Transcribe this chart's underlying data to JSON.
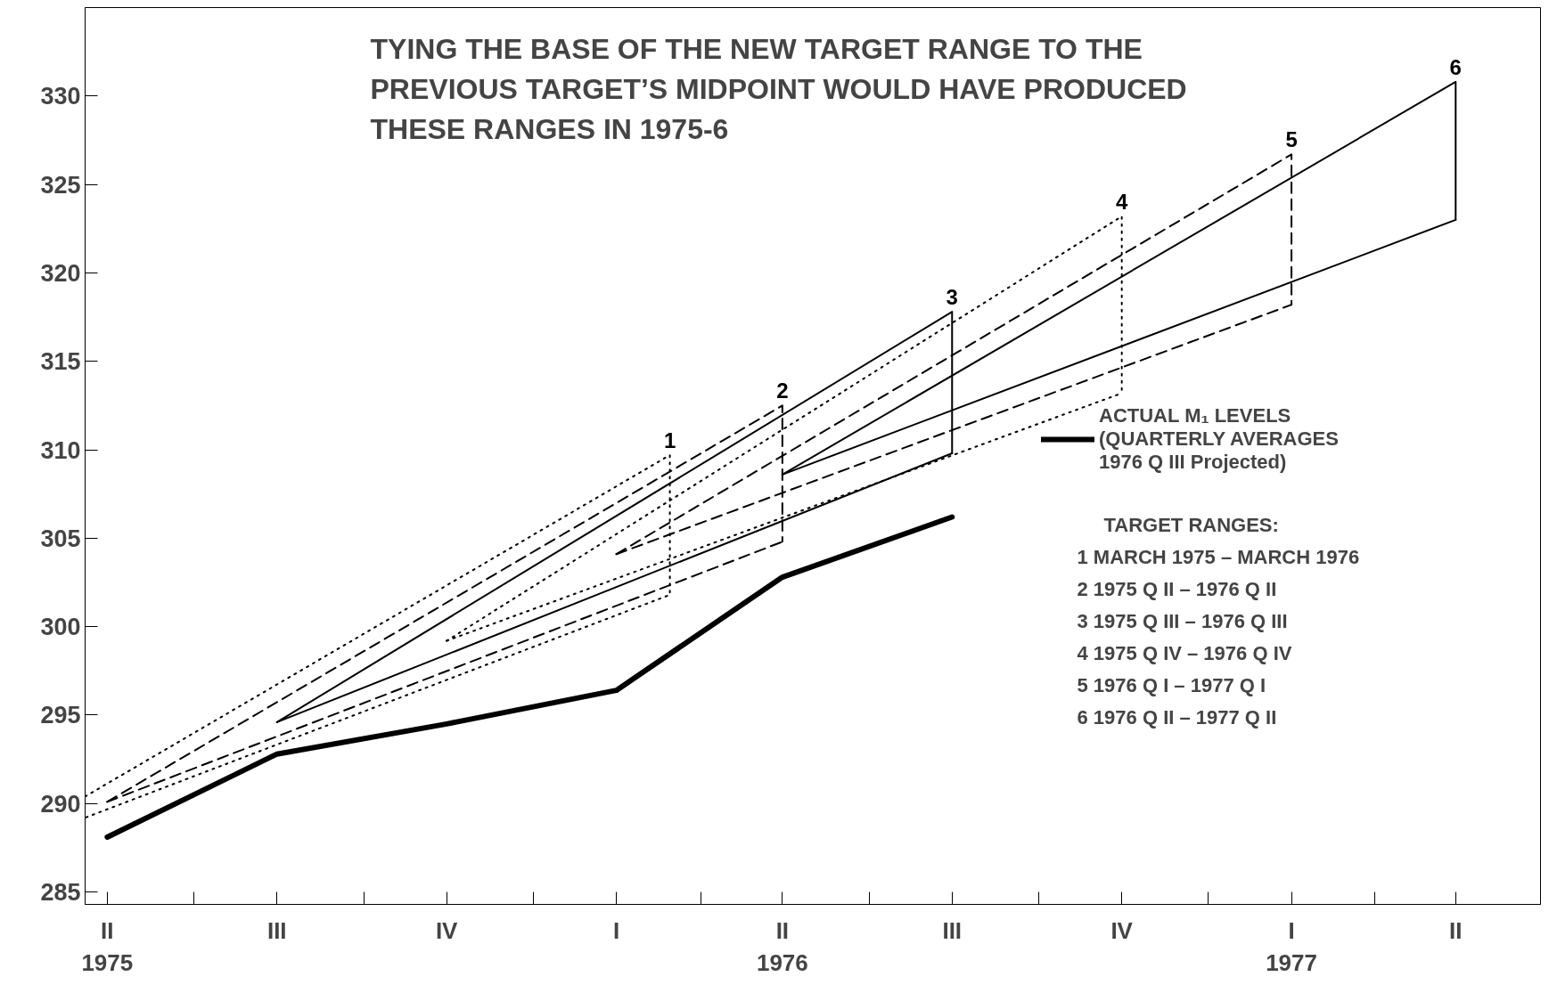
{
  "chart_data": {
    "type": "line",
    "title": "TYING THE BASE OF THE NEW TARGET RANGE TO THE\nPREVIOUS TARGET’S MIDPOINT WOULD HAVE PRODUCED\nTHESE RANGES IN 1975-6",
    "xlim": [
      "1975-05-03",
      "1977-06-30"
    ],
    "ylim": [
      284.3,
      335
    ],
    "xticks": [
      {
        "value": "1975-05-15",
        "label": "II\n1975"
      },
      {
        "value": "1975-08-15",
        "label": "III"
      },
      {
        "value": "1975-11-15",
        "label": "IV"
      },
      {
        "value": "1976-02-15",
        "label": "I"
      },
      {
        "value": "1976-05-15",
        "label": "II\n1976"
      },
      {
        "value": "1976-08-15",
        "label": "III"
      },
      {
        "value": "1976-11-15",
        "label": "IV"
      },
      {
        "value": "1977-02-15",
        "label": "I\n1977"
      },
      {
        "value": "1977-05-15",
        "label": "II"
      },
      {
        "value": "1975-07-01",
        "label": null
      },
      {
        "value": "1975-10-01",
        "label": null
      },
      {
        "value": "1976-01-01",
        "label": null
      },
      {
        "value": "1976-04-01",
        "label": null
      },
      {
        "value": "1976-07-01",
        "label": null
      },
      {
        "value": "1976-10-01",
        "label": null
      },
      {
        "value": "1977-01-01",
        "label": null
      },
      {
        "value": "1977-04-01",
        "label": null
      }
    ],
    "yticks": [
      285,
      290,
      295,
      300,
      305,
      310,
      315,
      320,
      325,
      330
    ],
    "grid": false,
    "legend": "right",
    "marker": "none",
    "series": [
      {
        "name": "ACTUAL M₁ LEVELS\n(QUARTERLY AVERAGES\n1976 Q III Projected)",
        "color": "#000000",
        "line_style": "solid",
        "x": [
          "1975-05-15",
          "1975-08-15",
          "1975-11-15",
          "1976-02-15",
          "1976-05-15",
          "1976-08-15"
        ],
        "values": [
          288.1,
          292.8,
          294.5,
          296.4,
          302.8,
          306.2
        ]
      },
      {
        "name": "1",
        "color": "#000000",
        "line_style": "dotted",
        "x": [
          "1975-05-03",
          "1976-03-15",
          "1976-03-15",
          "1975-05-03"
        ],
        "values": [
          290.4,
          309.7,
          301.8,
          289.2
        ]
      },
      {
        "name": "2",
        "color": "#000000",
        "line_style": "dashed",
        "x": [
          "1975-05-15",
          "1976-05-15",
          "1976-05-15"
        ],
        "values": [
          290.1,
          312.5,
          304.8
        ]
      },
      {
        "color": "#000000",
        "line_style": "dashed",
        "x": [
          "1975-05-15",
          "1976-05-15"
        ],
        "values": [
          290.1,
          304.8
        ]
      },
      {
        "name": "3",
        "color": "#000000",
        "line_style": "solid",
        "x": [
          "1975-08-15",
          "1976-08-15",
          "1976-08-15"
        ],
        "values": [
          294.6,
          317.8,
          309.8
        ]
      },
      {
        "color": "#000000",
        "line_style": "solid",
        "x": [
          "1975-08-15",
          "1976-08-15"
        ],
        "values": [
          294.6,
          309.8
        ]
      },
      {
        "name": "4",
        "color": "#000000",
        "line_style": "dotted",
        "x": [
          "1975-11-15",
          "1976-11-15",
          "1976-11-15"
        ],
        "values": [
          299.2,
          323.2,
          313.2
        ]
      },
      {
        "color": "#000000",
        "line_style": "dotted",
        "x": [
          "1975-11-15",
          "1976-11-15"
        ],
        "values": [
          299.2,
          313.2
        ]
      },
      {
        "name": "5",
        "color": "#000000",
        "line_style": "dashed",
        "x": [
          "1976-02-15",
          "1977-02-15",
          "1977-02-15"
        ],
        "values": [
          304.1,
          326.7,
          318.2
        ]
      },
      {
        "color": "#000000",
        "line_style": "dashed",
        "x": [
          "1976-02-15",
          "1977-02-15"
        ],
        "values": [
          304.1,
          318.2
        ]
      },
      {
        "name": "6",
        "color": "#000000",
        "line_style": "solid",
        "x": [
          "1976-05-15",
          "1977-05-15",
          "1977-05-15"
        ],
        "values": [
          308.6,
          330.8,
          323.0
        ]
      },
      {
        "color": "#000000",
        "line_style": "solid",
        "x": [
          "1976-05-15",
          "1977-05-15"
        ],
        "values": [
          308.6,
          323.0
        ]
      }
    ],
    "annotations": [
      "TARGET RANGES:",
      "1  MARCH 1975 – MARCH 1976",
      "2  1975 Q II – 1976 Q II",
      "3  1975 Q III – 1976 Q III",
      "4  1975 Q IV – 1976 Q IV",
      "5  1976 Q I – 1977 Q I",
      "6  1976 Q II – 1977 Q II"
    ]
  }
}
